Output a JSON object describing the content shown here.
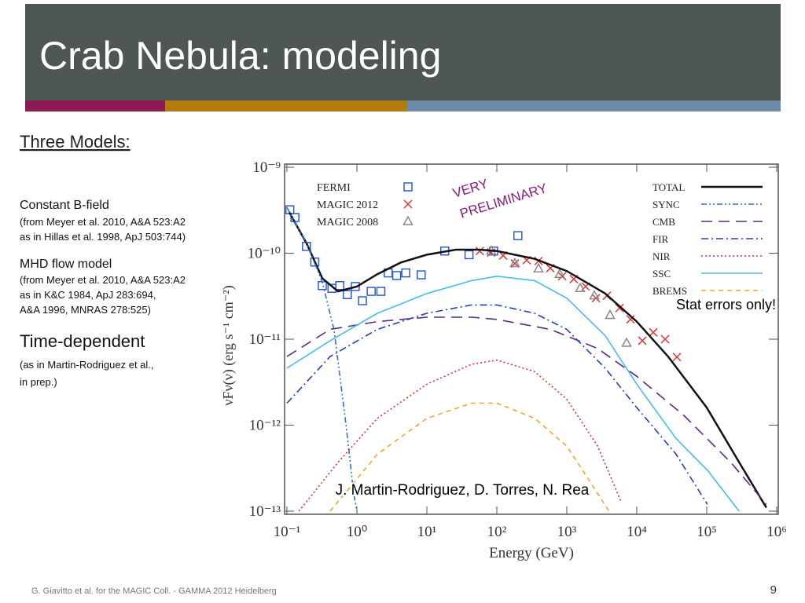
{
  "slide": {
    "title": "Crab Nebula: modeling",
    "heading": "Three Models:",
    "models": [
      {
        "name": "Constant B-field",
        "details": [
          "(from Meyer et al. 2010, A&A 523:A2",
          "as in Hillas et al. 1998, ApJ 503:744)"
        ]
      },
      {
        "name": "MHD flow model",
        "details": [
          "(from Meyer et al. 2010, A&A 523:A2",
          "as in K&C 1984, ApJ 283:694,",
          "A&A 1996, MNRAS 278:525)"
        ]
      },
      {
        "name": "Time-dependent",
        "details": [
          "(as in Martin-Rodriguez et al.,",
          "in prep.)"
        ]
      }
    ],
    "footer": "G. Giavitto et al. for the MAGIC Coll.  - GAMMA 2012 Heidelberg",
    "page_number": "9"
  },
  "chart_data": {
    "type": "line",
    "x_label": "Energy (GeV)",
    "y_label": "νFν(ν)  (erg s⁻¹ cm⁻²)",
    "xscale": "log",
    "yscale": "log",
    "xlim": [
      0.1,
      1000000
    ],
    "ylim": [
      1e-13,
      1e-09
    ],
    "xticks": [
      {
        "value": 0.1,
        "label": "10⁻¹"
      },
      {
        "value": 1,
        "label": "10⁰"
      },
      {
        "value": 10,
        "label": "10¹"
      },
      {
        "value": 100,
        "label": "10²"
      },
      {
        "value": 1000,
        "label": "10³"
      },
      {
        "value": 10000,
        "label": "10⁴"
      },
      {
        "value": 100000,
        "label": "10⁵"
      },
      {
        "value": 1000000,
        "label": "10⁶"
      }
    ],
    "yticks": [
      {
        "value": 1e-13,
        "label": "10⁻¹³"
      },
      {
        "value": 1e-12,
        "label": "10⁻¹²"
      },
      {
        "value": 1e-11,
        "label": "10⁻¹¹"
      },
      {
        "value": 1e-10,
        "label": "10⁻¹⁰"
      },
      {
        "value": 1e-09,
        "label": "10⁻⁹"
      }
    ],
    "annotations": [
      "VERY",
      "PRELIMINARY",
      "Stat errors only!",
      "J. Martin-Rodriguez, D. Torres, N. Rea"
    ],
    "series": [
      {
        "name": "FERMI",
        "kind": "scatter",
        "marker": "square",
        "color": "#2a5bd7",
        "x": [
          0.11,
          0.13,
          0.19,
          0.25,
          0.32,
          0.44,
          0.57,
          0.73,
          0.95,
          1.2,
          1.6,
          2.2,
          2.8,
          3.7,
          5.0,
          8.3,
          18,
          40,
          90,
          200
        ],
        "values": [
          3.2e-10,
          2.6e-10,
          1.2e-10,
          7.9e-11,
          4.2e-11,
          3.9e-11,
          4.2e-11,
          3.3e-11,
          4.1e-11,
          2.8e-11,
          3.6e-11,
          3.6e-11,
          5.9e-11,
          5.5e-11,
          5.9e-11,
          5.6e-11,
          1.06e-10,
          9.6e-11,
          1.06e-10,
          1.6e-10
        ]
      },
      {
        "name": "MAGIC 2012",
        "kind": "scatter",
        "marker": "x",
        "color": "#e03535",
        "x": [
          57,
          83,
          123,
          181,
          267,
          394,
          581,
          857,
          1260,
          1860,
          2610,
          3740,
          5660,
          8130,
          12000,
          17200,
          25400,
          37400
        ],
        "values": [
          1.06e-10,
          1.02e-10,
          9.4e-11,
          7.6e-11,
          8.3e-11,
          8.1e-11,
          6.7e-11,
          5.4e-11,
          5e-11,
          4.1e-11,
          3e-11,
          3.2e-11,
          2.3e-11,
          1.7e-11,
          9.6e-12,
          1.2e-11,
          1e-11,
          6.2e-12
        ]
      },
      {
        "name": "MAGIC 2008",
        "kind": "scatter",
        "marker": "triangle",
        "color": "#888888",
        "x": [
          83,
          181,
          394,
          792,
          1550,
          2470,
          4150,
          7150
        ],
        "values": [
          1.06e-10,
          7.6e-11,
          6.6e-11,
          5.7e-11,
          3.9e-11,
          3.2e-11,
          1.9e-11,
          9e-12
        ]
      },
      {
        "name": "TOTAL",
        "kind": "line",
        "style": "solid",
        "color": "#111111",
        "x": [
          0.108,
          0.191,
          0.32,
          0.537,
          1,
          1.96,
          4.26,
          10,
          26,
          56.6,
          100,
          347,
          1000,
          3530,
          10000,
          28000,
          100000,
          290000,
          710000
        ],
        "values": [
          3e-10,
          1.3e-10,
          5.1e-11,
          3.6e-11,
          4.1e-11,
          5.7e-11,
          7.8e-11,
          9.6e-11,
          1.1e-10,
          1.1e-10,
          1.06e-10,
          8.6e-11,
          6.2e-11,
          3.4e-11,
          1.6e-11,
          6.3e-12,
          1.6e-12,
          3.7e-13,
          1.1e-13
        ]
      },
      {
        "name": "SYNC",
        "kind": "line",
        "style": "dashdotdot",
        "color": "#2f6fe0",
        "x": [
          0.1,
          0.191,
          0.32,
          0.47,
          0.7,
          0.9,
          1.0
        ],
        "values": [
          3.4e-10,
          1.3e-10,
          4.6e-11,
          1.3e-11,
          1e-12,
          1.6e-13,
          1e-13
        ]
      },
      {
        "name": "CMB",
        "kind": "line",
        "style": "dashed",
        "color": "#5b2a86",
        "x": [
          0.1,
          0.415,
          1.96,
          10,
          44,
          100,
          580,
          2760,
          10000,
          47000,
          220000,
          710000
        ],
        "values": [
          6.3e-12,
          1.3e-11,
          1.6e-11,
          1.8e-11,
          1.8e-11,
          1.7e-11,
          1.3e-11,
          7.8e-12,
          3.7e-12,
          1.3e-12,
          3.7e-13,
          1.2e-13
        ]
      },
      {
        "name": "FIR",
        "kind": "line",
        "style": "dashdot",
        "color": "#1f3fbf",
        "x": [
          0.1,
          0.415,
          1.96,
          10,
          43.6,
          100,
          347,
          1000,
          3530,
          10000,
          36400,
          102000
        ],
        "values": [
          1.8e-12,
          6.3e-12,
          1.3e-11,
          2e-11,
          2.5e-11,
          2.5e-11,
          2e-11,
          1.3e-11,
          4.6e-12,
          1.6e-12,
          4.6e-13,
          1.2e-13
        ]
      },
      {
        "name": "NIR",
        "kind": "line",
        "style": "dotted",
        "color": "#e03030",
        "x": [
          0.148,
          0.537,
          1.96,
          10,
          43.6,
          100,
          347,
          1000,
          2760,
          5950
        ],
        "values": [
          1e-13,
          3.7e-13,
          1.2e-12,
          3e-12,
          5.1e-12,
          5.7e-12,
          4.2e-12,
          2e-12,
          5.7e-13,
          1.3e-13
        ]
      },
      {
        "name": "SSC",
        "kind": "line",
        "style": "solid",
        "color": "#45bde8",
        "x": [
          0.1,
          0.415,
          1.96,
          10,
          43.6,
          100,
          347,
          1000,
          3530,
          10000,
          36400,
          102000,
          290000
        ],
        "values": [
          4.6e-12,
          9.6e-12,
          2e-11,
          3.4e-11,
          4.8e-11,
          5.4e-11,
          4.8e-11,
          3e-11,
          1.1e-11,
          3e-12,
          7e-13,
          3e-13,
          1e-13
        ]
      },
      {
        "name": "BREMS",
        "kind": "line",
        "style": "dashedshort",
        "color": "#f5a623",
        "x": [
          0.415,
          1.96,
          10,
          43.6,
          100,
          347,
          1000,
          2760,
          4000
        ],
        "values": [
          1e-13,
          4.6e-13,
          1.2e-12,
          1.8e-12,
          1.8e-12,
          1.2e-12,
          5.7e-13,
          1.6e-13,
          1e-13
        ]
      }
    ]
  }
}
